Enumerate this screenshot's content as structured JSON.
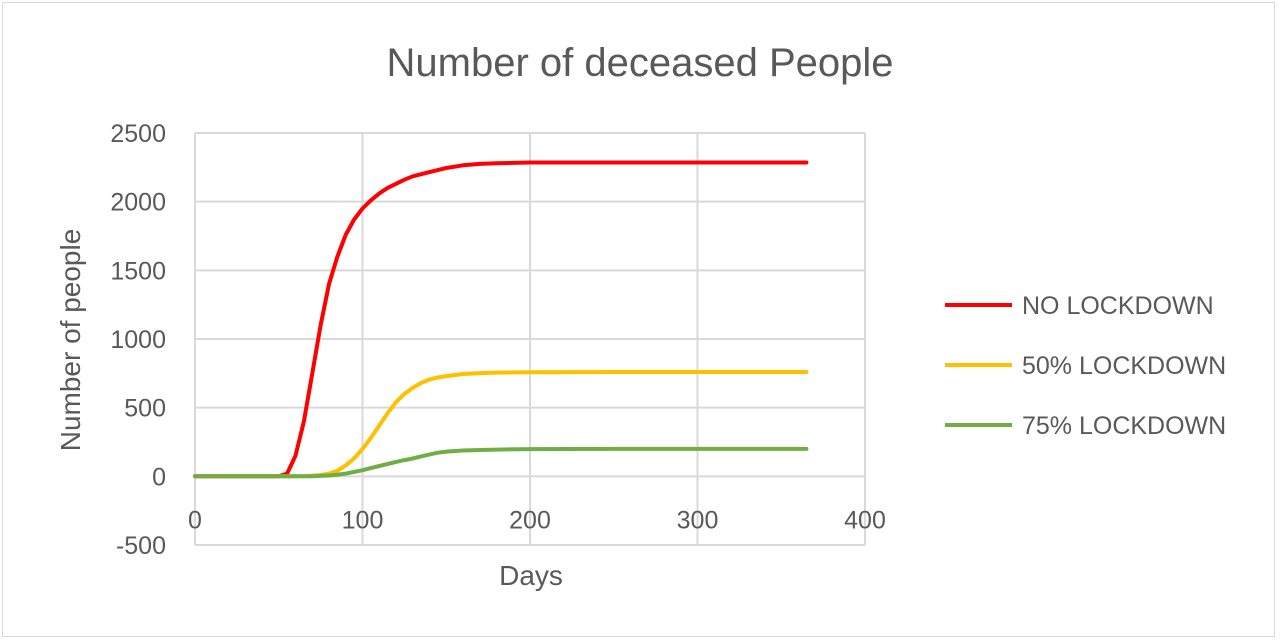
{
  "chart_data": {
    "type": "line",
    "title": "Number of deceased People",
    "xlabel": "Days",
    "ylabel": "Number of people",
    "xlim": [
      0,
      400
    ],
    "ylim": [
      -500,
      2500
    ],
    "x_ticks": [
      "0",
      "100",
      "200",
      "300",
      "400"
    ],
    "y_ticks": [
      "2500",
      "2000",
      "1500",
      "1000",
      "500",
      "0",
      "-500"
    ],
    "grid": true,
    "legend_position": "right",
    "x": [
      0,
      50,
      55,
      60,
      65,
      70,
      75,
      80,
      85,
      90,
      95,
      100,
      105,
      110,
      115,
      120,
      125,
      130,
      135,
      140,
      145,
      150,
      160,
      170,
      180,
      200,
      250,
      300,
      365
    ],
    "series": [
      {
        "name": "NO LOCKDOWN",
        "color": "#ff0000",
        "values": [
          0,
          0,
          20,
          150,
          400,
          750,
          1100,
          1400,
          1600,
          1760,
          1870,
          1950,
          2010,
          2060,
          2100,
          2130,
          2160,
          2185,
          2200,
          2215,
          2230,
          2245,
          2265,
          2275,
          2280,
          2285,
          2285,
          2285,
          2285
        ]
      },
      {
        "name": "50% LOCKDOWN",
        "color": "#ffc000",
        "values": [
          0,
          0,
          0,
          0,
          2,
          5,
          10,
          20,
          40,
          80,
          130,
          200,
          280,
          370,
          460,
          540,
          600,
          645,
          680,
          705,
          720,
          730,
          745,
          752,
          755,
          758,
          760,
          760,
          760
        ]
      },
      {
        "name": "75% LOCKDOWN",
        "color": "#70ad47",
        "values": [
          0,
          0,
          0,
          0,
          0,
          1,
          3,
          6,
          12,
          20,
          32,
          45,
          60,
          75,
          90,
          105,
          118,
          130,
          145,
          160,
          172,
          180,
          188,
          192,
          195,
          198,
          200,
          200,
          200
        ]
      }
    ]
  }
}
